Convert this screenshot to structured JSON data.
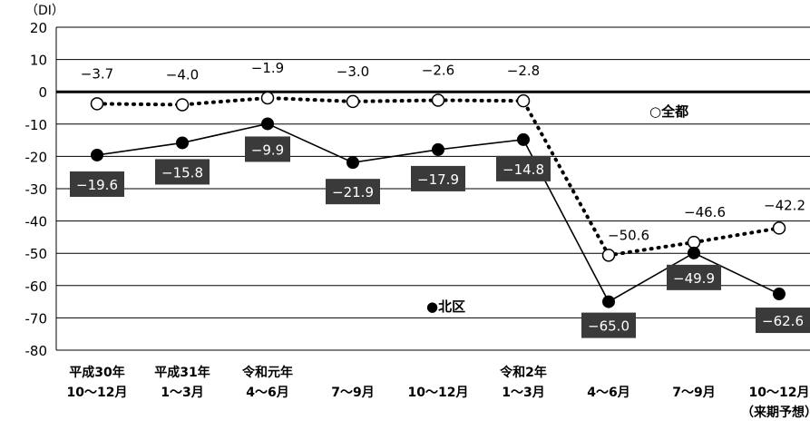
{
  "chart_data": {
    "type": "line",
    "unit_label": "（DI）",
    "ylim": [
      -80,
      20
    ],
    "yticks": [
      20,
      10,
      0,
      -10,
      -20,
      -30,
      -40,
      -50,
      -60,
      -70,
      -80
    ],
    "grid": true,
    "categories": [
      [
        "平成30年",
        "10～12月"
      ],
      [
        "平成31年",
        "1～3月"
      ],
      [
        "令和元年",
        "4～6月"
      ],
      [
        "",
        "7～9月"
      ],
      [
        "",
        "10～12月"
      ],
      [
        "令和2年",
        "1～3月"
      ],
      [
        "",
        "4～6月"
      ],
      [
        "",
        "7～9月"
      ],
      [
        "",
        "10～12月",
        "（来期予想）"
      ]
    ],
    "series": [
      {
        "name": "全都",
        "legend_label": "○全都",
        "marker": "open-circle",
        "line": "dotted",
        "values": [
          -3.7,
          -4.0,
          -1.9,
          -3.0,
          -2.6,
          -2.8,
          -50.6,
          -46.6,
          -42.2
        ],
        "labels": [
          "−3.7",
          "−4.0",
          "−1.9",
          "−3.0",
          "−2.6",
          "−2.8",
          "−50.6",
          "−46.6",
          "−42.2"
        ]
      },
      {
        "name": "北区",
        "legend_label": "●北区",
        "marker": "filled-circle",
        "line": "solid",
        "values": [
          -19.6,
          -15.8,
          -9.9,
          -21.9,
          -17.9,
          -14.8,
          -65.0,
          -49.9,
          -62.6
        ],
        "labels": [
          "−19.6",
          "−15.8",
          "−9.9",
          "−21.9",
          "−17.9",
          "−14.8",
          "−65.0",
          "−49.9",
          "−62.6"
        ]
      }
    ],
    "colors": {
      "line": "#000000",
      "label_box": "#3a3a3a",
      "label_box_text": "#ffffff",
      "grid": "#000000"
    }
  }
}
